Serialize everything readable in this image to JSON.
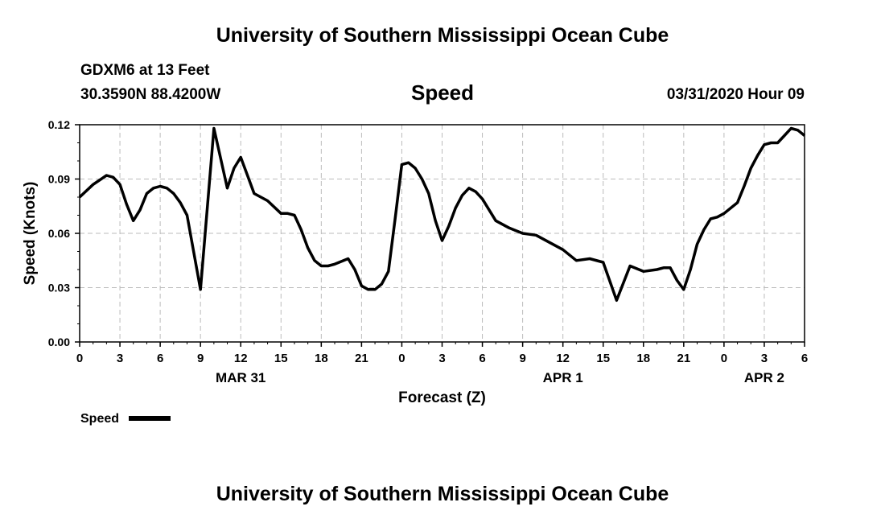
{
  "header": {
    "title": "University of Southern Mississippi Ocean Cube",
    "station": "GDXM6 at 13 Feet",
    "coordinates": "30.3590N 88.4200W",
    "datetime": "03/31/2020 Hour 09"
  },
  "footer": {
    "title": "University of Southern Mississippi Ocean Cube"
  },
  "chart_data": {
    "type": "line",
    "title": "Speed",
    "xlabel": "Forecast (Z)",
    "ylabel": "Speed (Knots)",
    "ylim": [
      0,
      0.12
    ],
    "yticks": [
      "0.00",
      "0.03",
      "0.06",
      "0.09",
      "0.12"
    ],
    "xlim": [
      0,
      54
    ],
    "xticks": [
      "0",
      "3",
      "6",
      "9",
      "12",
      "15",
      "18",
      "21",
      "0",
      "3",
      "6",
      "9",
      "12",
      "15",
      "18",
      "21",
      "0",
      "3",
      "6"
    ],
    "date_labels": [
      {
        "label": "MAR 31",
        "hour": 12
      },
      {
        "label": "APR 1",
        "hour": 36
      },
      {
        "label": "APR 2",
        "hour": 51
      }
    ],
    "grid": true,
    "legend": "bottom-left",
    "line_color": "#000000",
    "series": [
      {
        "name": "Speed",
        "x": [
          0,
          1,
          2,
          2.5,
          3,
          3.5,
          4,
          4.5,
          5,
          5.5,
          6,
          6.5,
          7,
          7.5,
          8,
          9,
          10,
          11,
          11.5,
          12,
          12.5,
          13,
          14,
          15,
          15.5,
          16,
          16.5,
          17,
          17.5,
          18,
          18.5,
          19,
          20,
          20.5,
          21,
          21.5,
          22,
          22.5,
          23,
          23.5,
          24,
          24.5,
          25,
          25.5,
          26,
          26.5,
          27,
          27.5,
          28,
          28.5,
          29,
          29.5,
          30,
          31,
          32,
          33,
          34,
          35,
          36,
          37,
          38,
          39,
          40,
          41,
          42,
          43,
          43.5,
          44,
          44.5,
          45,
          45.5,
          46,
          46.5,
          47,
          47.5,
          48,
          49,
          49.5,
          50,
          50.5,
          51,
          51.5,
          52,
          52.5,
          53,
          53.5,
          54
        ],
        "y": [
          0.08,
          0.087,
          0.092,
          0.091,
          0.087,
          0.076,
          0.067,
          0.073,
          0.082,
          0.085,
          0.086,
          0.085,
          0.082,
          0.077,
          0.07,
          0.029,
          0.118,
          0.085,
          0.096,
          0.102,
          0.092,
          0.082,
          0.078,
          0.071,
          0.071,
          0.07,
          0.062,
          0.052,
          0.045,
          0.042,
          0.042,
          0.043,
          0.046,
          0.04,
          0.031,
          0.029,
          0.029,
          0.032,
          0.039,
          0.068,
          0.098,
          0.099,
          0.096,
          0.09,
          0.082,
          0.067,
          0.056,
          0.064,
          0.074,
          0.081,
          0.085,
          0.083,
          0.079,
          0.067,
          0.063,
          0.06,
          0.059,
          0.055,
          0.051,
          0.045,
          0.046,
          0.044,
          0.023,
          0.042,
          0.039,
          0.04,
          0.041,
          0.041,
          0.034,
          0.029,
          0.04,
          0.054,
          0.062,
          0.068,
          0.069,
          0.071,
          0.077,
          0.086,
          0.096,
          0.103,
          0.109,
          0.11,
          0.11,
          0.114,
          0.118,
          0.117,
          0.114
        ]
      }
    ]
  }
}
